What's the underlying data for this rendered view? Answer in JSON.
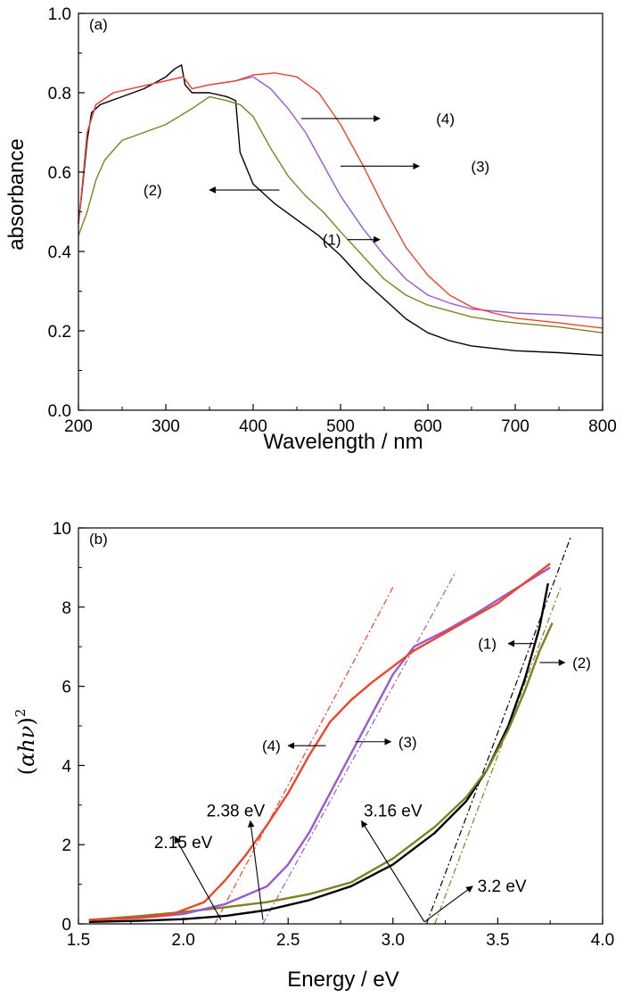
{
  "chart_data": [
    {
      "type": "line",
      "panel_label": "(a)",
      "xlabel": "Wavelength / nm",
      "ylabel": "absorbance",
      "xlim": [
        200,
        800
      ],
      "ylim": [
        0.0,
        1.0
      ],
      "x_ticks": [
        "200",
        "300",
        "400",
        "500",
        "600",
        "700",
        "800"
      ],
      "y_ticks": [
        "0.0",
        "0.2",
        "0.4",
        "0.6",
        "0.8",
        "1.0"
      ],
      "series": [
        {
          "name": "(1)",
          "color": "#000000",
          "points": [
            [
              200,
              0.47
            ],
            [
              205,
              0.57
            ],
            [
              210,
              0.68
            ],
            [
              215,
              0.75
            ],
            [
              225,
              0.77
            ],
            [
              250,
              0.79
            ],
            [
              275,
              0.81
            ],
            [
              300,
              0.84
            ],
            [
              310,
              0.86
            ],
            [
              318,
              0.87
            ],
            [
              322,
              0.82
            ],
            [
              330,
              0.8
            ],
            [
              350,
              0.8
            ],
            [
              370,
              0.79
            ],
            [
              380,
              0.78
            ],
            [
              385,
              0.65
            ],
            [
              400,
              0.57
            ],
            [
              425,
              0.52
            ],
            [
              450,
              0.48
            ],
            [
              475,
              0.44
            ],
            [
              500,
              0.39
            ],
            [
              525,
              0.33
            ],
            [
              550,
              0.28
            ],
            [
              575,
              0.23
            ],
            [
              600,
              0.195
            ],
            [
              625,
              0.175
            ],
            [
              650,
              0.162
            ],
            [
              700,
              0.15
            ],
            [
              750,
              0.145
            ],
            [
              800,
              0.138
            ]
          ]
        },
        {
          "name": "(2)",
          "color": "#808020",
          "points": [
            [
              200,
              0.44
            ],
            [
              210,
              0.5
            ],
            [
              220,
              0.58
            ],
            [
              230,
              0.63
            ],
            [
              250,
              0.68
            ],
            [
              275,
              0.7
            ],
            [
              300,
              0.72
            ],
            [
              315,
              0.74
            ],
            [
              330,
              0.76
            ],
            [
              350,
              0.79
            ],
            [
              370,
              0.78
            ],
            [
              385,
              0.77
            ],
            [
              400,
              0.74
            ],
            [
              420,
              0.66
            ],
            [
              440,
              0.59
            ],
            [
              460,
              0.54
            ],
            [
              480,
              0.5
            ],
            [
              500,
              0.45
            ],
            [
              525,
              0.39
            ],
            [
              550,
              0.33
            ],
            [
              575,
              0.29
            ],
            [
              600,
              0.265
            ],
            [
              650,
              0.235
            ],
            [
              680,
              0.225
            ],
            [
              700,
              0.22
            ],
            [
              750,
              0.21
            ],
            [
              800,
              0.195
            ]
          ]
        },
        {
          "name": "(3)",
          "color": "#9b59d0",
          "points": [
            [
              200,
              0.47
            ],
            [
              205,
              0.58
            ],
            [
              210,
              0.7
            ],
            [
              220,
              0.77
            ],
            [
              240,
              0.8
            ],
            [
              260,
              0.81
            ],
            [
              280,
              0.82
            ],
            [
              300,
              0.83
            ],
            [
              320,
              0.84
            ],
            [
              330,
              0.81
            ],
            [
              350,
              0.82
            ],
            [
              380,
              0.83
            ],
            [
              400,
              0.84
            ],
            [
              420,
              0.81
            ],
            [
              440,
              0.76
            ],
            [
              460,
              0.7
            ],
            [
              480,
              0.62
            ],
            [
              500,
              0.54
            ],
            [
              525,
              0.46
            ],
            [
              550,
              0.39
            ],
            [
              575,
              0.33
            ],
            [
              600,
              0.29
            ],
            [
              625,
              0.27
            ],
            [
              650,
              0.255
            ],
            [
              700,
              0.245
            ],
            [
              750,
              0.24
            ],
            [
              800,
              0.232
            ]
          ]
        },
        {
          "name": "(4)",
          "color": "#f0442a",
          "points": [
            [
              200,
              0.47
            ],
            [
              205,
              0.58
            ],
            [
              210,
              0.7
            ],
            [
              220,
              0.77
            ],
            [
              240,
              0.8
            ],
            [
              260,
              0.81
            ],
            [
              280,
              0.82
            ],
            [
              300,
              0.83
            ],
            [
              320,
              0.84
            ],
            [
              330,
              0.81
            ],
            [
              350,
              0.82
            ],
            [
              380,
              0.83
            ],
            [
              400,
              0.845
            ],
            [
              425,
              0.85
            ],
            [
              450,
              0.84
            ],
            [
              475,
              0.8
            ],
            [
              500,
              0.72
            ],
            [
              525,
              0.62
            ],
            [
              550,
              0.51
            ],
            [
              575,
              0.41
            ],
            [
              600,
              0.34
            ],
            [
              625,
              0.29
            ],
            [
              650,
              0.26
            ],
            [
              675,
              0.245
            ],
            [
              700,
              0.232
            ],
            [
              750,
              0.22
            ],
            [
              800,
              0.207
            ]
          ]
        }
      ],
      "annotations": [
        {
          "label": "(1)",
          "text_x": 490,
          "text_y": 0.43,
          "arrow_from": [
            508,
            0.43
          ],
          "arrow_to": [
            545,
            0.43
          ]
        },
        {
          "label": "(2)",
          "text_x": 285,
          "text_y": 0.555,
          "arrow_from": [
            430,
            0.555
          ],
          "arrow_to": [
            350,
            0.555
          ]
        },
        {
          "label": "(3)",
          "text_x": 660,
          "text_y": 0.615,
          "arrow_from": [
            500,
            0.615
          ],
          "arrow_to": [
            590,
            0.615
          ]
        },
        {
          "label": "(4)",
          "text_x": 620,
          "text_y": 0.735,
          "arrow_from": [
            455,
            0.735
          ],
          "arrow_to": [
            545,
            0.735
          ]
        }
      ]
    },
    {
      "type": "line",
      "panel_label": "(b)",
      "xlabel": "Energy / eV",
      "ylabel_parts": [
        "(",
        "αhν",
        ")",
        "2"
      ],
      "xlim": [
        1.5,
        4.0
      ],
      "ylim": [
        0,
        10
      ],
      "x_ticks": [
        "1.5",
        "2.0",
        "2.5",
        "3.0",
        "3.5",
        "4.0"
      ],
      "y_ticks": [
        "0",
        "2",
        "4",
        "6",
        "8",
        "10"
      ],
      "series": [
        {
          "name": "(1)",
          "color": "#000000",
          "points": [
            [
              1.55,
              0.05
            ],
            [
              1.8,
              0.08
            ],
            [
              2.0,
              0.12
            ],
            [
              2.2,
              0.2
            ],
            [
              2.4,
              0.35
            ],
            [
              2.6,
              0.6
            ],
            [
              2.8,
              0.95
            ],
            [
              3.0,
              1.5
            ],
            [
              3.2,
              2.3
            ],
            [
              3.35,
              3.1
            ],
            [
              3.45,
              3.9
            ],
            [
              3.55,
              5.0
            ],
            [
              3.63,
              6.2
            ],
            [
              3.7,
              7.5
            ],
            [
              3.74,
              8.6
            ]
          ]
        },
        {
          "name": "(2)",
          "color": "#808020",
          "points": [
            [
              1.55,
              0.1
            ],
            [
              1.8,
              0.2
            ],
            [
              2.0,
              0.3
            ],
            [
              2.2,
              0.42
            ],
            [
              2.4,
              0.55
            ],
            [
              2.6,
              0.75
            ],
            [
              2.8,
              1.05
            ],
            [
              3.0,
              1.65
            ],
            [
              3.2,
              2.45
            ],
            [
              3.35,
              3.2
            ],
            [
              3.45,
              3.9
            ],
            [
              3.55,
              4.9
            ],
            [
              3.63,
              5.9
            ],
            [
              3.7,
              6.9
            ],
            [
              3.76,
              7.6
            ]
          ]
        },
        {
          "name": "(3)",
          "color": "#9b59d0",
          "points": [
            [
              1.55,
              0.1
            ],
            [
              1.8,
              0.15
            ],
            [
              2.0,
              0.25
            ],
            [
              2.2,
              0.5
            ],
            [
              2.4,
              0.95
            ],
            [
              2.5,
              1.5
            ],
            [
              2.6,
              2.3
            ],
            [
              2.7,
              3.3
            ],
            [
              2.8,
              4.3
            ],
            [
              2.9,
              5.3
            ],
            [
              3.0,
              6.3
            ],
            [
              3.1,
              7.0
            ],
            [
              3.25,
              7.4
            ],
            [
              3.4,
              7.85
            ],
            [
              3.55,
              8.35
            ],
            [
              3.75,
              9.0
            ]
          ]
        },
        {
          "name": "(4)",
          "color": "#f0442a",
          "points": [
            [
              1.55,
              0.1
            ],
            [
              1.8,
              0.16
            ],
            [
              1.95,
              0.25
            ],
            [
              2.1,
              0.55
            ],
            [
              2.2,
              1.1
            ],
            [
              2.3,
              1.75
            ],
            [
              2.4,
              2.5
            ],
            [
              2.5,
              3.3
            ],
            [
              2.6,
              4.25
            ],
            [
              2.7,
              5.1
            ],
            [
              2.8,
              5.65
            ],
            [
              2.9,
              6.1
            ],
            [
              3.0,
              6.5
            ],
            [
              3.1,
              6.9
            ],
            [
              3.3,
              7.5
            ],
            [
              3.5,
              8.1
            ],
            [
              3.75,
              9.1
            ]
          ]
        }
      ],
      "fit_lines": [
        {
          "series": "(4)",
          "color": "#f0442a",
          "from": [
            2.15,
            0
          ],
          "to": [
            3.0,
            8.5
          ]
        },
        {
          "series": "(3)",
          "color": "#9b59d0",
          "from": [
            2.38,
            0
          ],
          "to": [
            3.3,
            8.9
          ]
        },
        {
          "series": "(1)",
          "color": "#000000",
          "from": [
            3.16,
            0
          ],
          "to": [
            3.85,
            9.8
          ]
        },
        {
          "series": "(2)",
          "color": "#808020",
          "from": [
            3.2,
            0
          ],
          "to": [
            3.8,
            8.5
          ]
        }
      ],
      "curve_labels": [
        {
          "label": "(1)",
          "text_x": 3.45,
          "text_y": 7.08,
          "arrow_from": [
            3.68,
            7.08
          ],
          "arrow_to": [
            3.55,
            7.08
          ]
        },
        {
          "label": "(2)",
          "text_x": 3.9,
          "text_y": 6.6,
          "arrow_from": [
            3.7,
            6.6
          ],
          "arrow_to": [
            3.82,
            6.6
          ]
        },
        {
          "label": "(3)",
          "text_x": 3.07,
          "text_y": 4.6,
          "arrow_from": [
            2.82,
            4.6
          ],
          "arrow_to": [
            2.99,
            4.6
          ]
        },
        {
          "label": "(4)",
          "text_x": 2.42,
          "text_y": 4.5,
          "arrow_from": [
            2.68,
            4.5
          ],
          "arrow_to": [
            2.5,
            4.5
          ]
        }
      ],
      "bandgaps": [
        {
          "label": "2.15 eV",
          "text_x": 2.0,
          "text_y": 2.05,
          "arrow_from": [
            2.18,
            0.1
          ],
          "arrow_to": [
            1.96,
            2.2
          ]
        },
        {
          "label": "2.38 eV",
          "text_x": 2.25,
          "text_y": 2.85,
          "arrow_from": [
            2.38,
            0.1
          ],
          "arrow_to": [
            2.32,
            2.6
          ]
        },
        {
          "label": "3.16 eV",
          "text_x": 3.0,
          "text_y": 2.85,
          "arrow_from": [
            3.15,
            0.05
          ],
          "arrow_to": [
            2.85,
            2.6
          ]
        },
        {
          "label": "3.2 eV",
          "text_x": 3.52,
          "text_y": 0.95,
          "arrow_from": [
            3.15,
            0.05
          ],
          "arrow_to": [
            3.38,
            0.95
          ]
        }
      ]
    }
  ]
}
